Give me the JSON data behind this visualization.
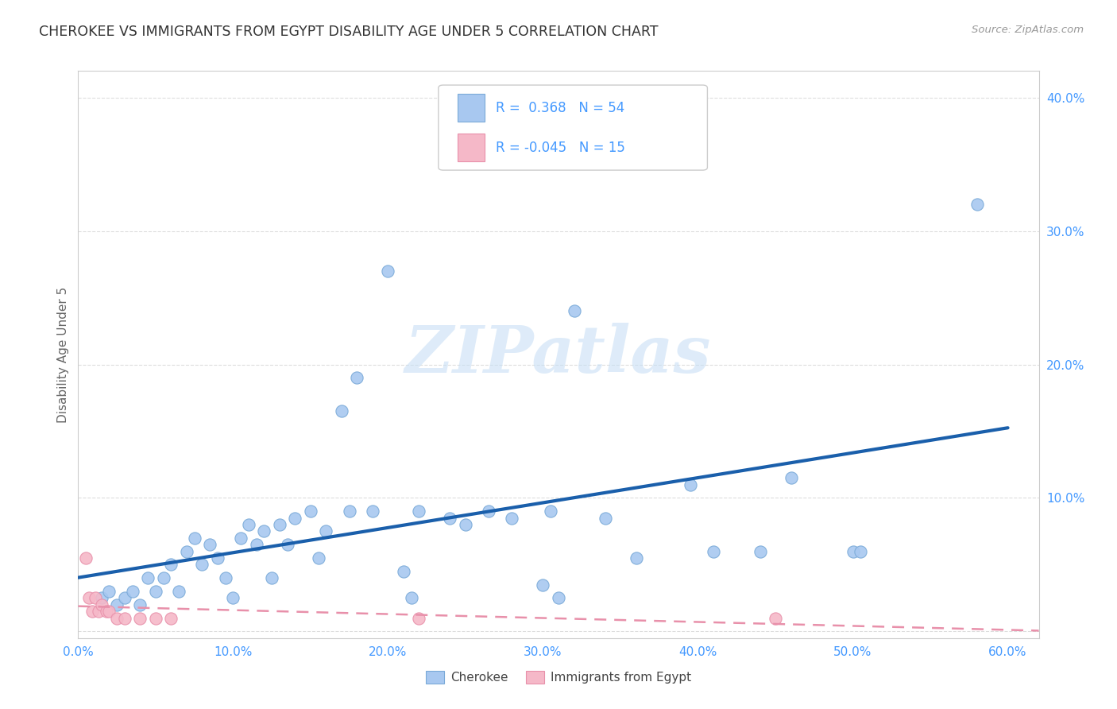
{
  "title": "CHEROKEE VS IMMIGRANTS FROM EGYPT DISABILITY AGE UNDER 5 CORRELATION CHART",
  "source": "Source: ZipAtlas.com",
  "ylabel": "Disability Age Under 5",
  "xlabel_cherokee": "Cherokee",
  "xlabel_egypt": "Immigrants from Egypt",
  "xlim": [
    0.0,
    0.62
  ],
  "ylim": [
    -0.005,
    0.42
  ],
  "xticks": [
    0.0,
    0.1,
    0.2,
    0.3,
    0.4,
    0.5,
    0.6
  ],
  "yticks": [
    0.0,
    0.1,
    0.2,
    0.3,
    0.4
  ],
  "xtick_labels": [
    "0.0%",
    "10.0%",
    "20.0%",
    "30.0%",
    "40.0%",
    "50.0%",
    "60.0%"
  ],
  "ytick_labels": [
    "",
    "10.0%",
    "20.0%",
    "30.0%",
    "40.0%"
  ],
  "cherokee_color": "#A8C8F0",
  "egypt_color": "#F5B8C8",
  "cherokee_edge_color": "#7AAAD8",
  "egypt_edge_color": "#E890AA",
  "cherokee_line_color": "#1A5FAB",
  "egypt_line_color": "#E890AA",
  "watermark_color": "#C8DFF5",
  "watermark": "ZIPatlas",
  "legend_R_cherokee": "0.368",
  "legend_N_cherokee": "54",
  "legend_R_egypt": "-0.045",
  "legend_N_egypt": "15",
  "cherokee_x": [
    0.015,
    0.02,
    0.025,
    0.03,
    0.035,
    0.04,
    0.045,
    0.05,
    0.055,
    0.06,
    0.065,
    0.07,
    0.075,
    0.08,
    0.085,
    0.09,
    0.095,
    0.1,
    0.105,
    0.11,
    0.115,
    0.12,
    0.125,
    0.13,
    0.135,
    0.14,
    0.15,
    0.155,
    0.16,
    0.17,
    0.175,
    0.18,
    0.19,
    0.2,
    0.21,
    0.215,
    0.22,
    0.24,
    0.25,
    0.265,
    0.28,
    0.3,
    0.305,
    0.31,
    0.32,
    0.34,
    0.36,
    0.395,
    0.41,
    0.44,
    0.46,
    0.5,
    0.505,
    0.58
  ],
  "cherokee_y": [
    0.025,
    0.03,
    0.02,
    0.025,
    0.03,
    0.02,
    0.04,
    0.03,
    0.04,
    0.05,
    0.03,
    0.06,
    0.07,
    0.05,
    0.065,
    0.055,
    0.04,
    0.025,
    0.07,
    0.08,
    0.065,
    0.075,
    0.04,
    0.08,
    0.065,
    0.085,
    0.09,
    0.055,
    0.075,
    0.165,
    0.09,
    0.19,
    0.09,
    0.27,
    0.045,
    0.025,
    0.09,
    0.085,
    0.08,
    0.09,
    0.085,
    0.035,
    0.09,
    0.025,
    0.24,
    0.085,
    0.055,
    0.11,
    0.06,
    0.06,
    0.115,
    0.06,
    0.06,
    0.32
  ],
  "egypt_x": [
    0.005,
    0.007,
    0.009,
    0.011,
    0.013,
    0.015,
    0.018,
    0.02,
    0.025,
    0.03,
    0.04,
    0.05,
    0.06,
    0.22,
    0.45
  ],
  "egypt_y": [
    0.055,
    0.025,
    0.015,
    0.025,
    0.015,
    0.02,
    0.015,
    0.015,
    0.01,
    0.01,
    0.01,
    0.01,
    0.01,
    0.01,
    0.01
  ],
  "background_color": "#FFFFFF",
  "grid_color": "#DDDDDD",
  "tick_color": "#4499FF",
  "spine_color": "#CCCCCC",
  "title_color": "#333333",
  "source_color": "#999999",
  "ylabel_color": "#666666"
}
